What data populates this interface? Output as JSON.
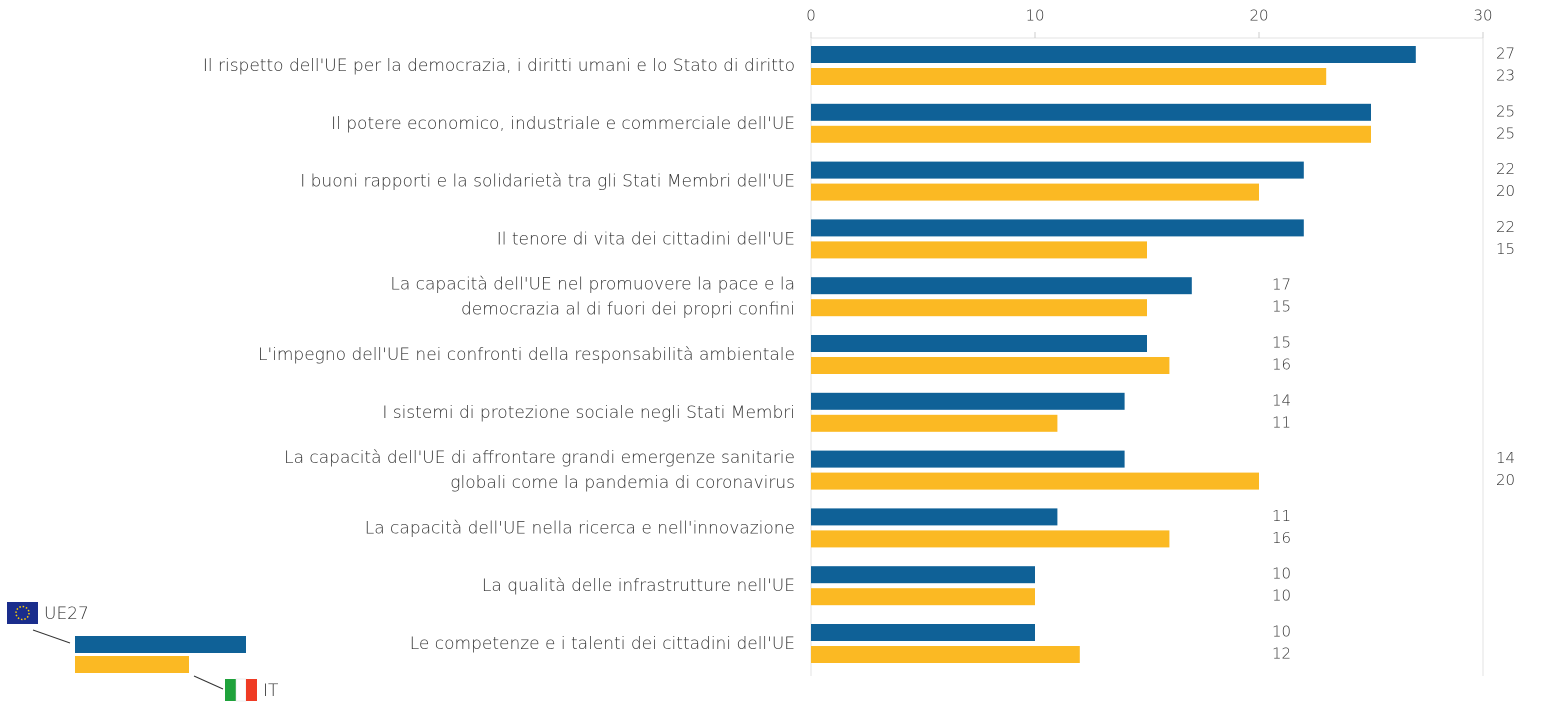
{
  "chart_data": {
    "type": "bar",
    "orientation": "horizontal",
    "categories": [
      "Il rispetto dell'UE per la democrazia, i diritti umani e lo Stato di diritto",
      "Il potere economico, industriale e commerciale dell'UE",
      "I buoni rapporti e la solidarietà tra gli Stati Membri dell'UE",
      "Il tenore di vita dei cittadini dell'UE",
      "La capacità dell'UE nel promuovere la pace e la\ndemocrazia al di fuori dei propri confini",
      "L'impegno dell'UE nei confronti della responsabilità ambientale",
      "I sistemi di protezione sociale negli Stati Membri",
      "La capacità dell'UE di affrontare grandi emergenze sanitarie\nglobali come la pandemia di coronavirus",
      "La capacità dell'UE nella ricerca e nell'innovazione",
      "La qualità delle infrastrutture nell'UE",
      "Le competenze e i talenti dei cittadini dell'UE"
    ],
    "series": [
      {
        "name": "UE27",
        "color": "#0f6197",
        "values": [
          27,
          25,
          22,
          22,
          17,
          15,
          14,
          14,
          11,
          10,
          10
        ]
      },
      {
        "name": "IT",
        "color": "#fbb923",
        "values": [
          23,
          25,
          20,
          15,
          15,
          16,
          11,
          20,
          16,
          10,
          12
        ]
      }
    ],
    "xlim": [
      0,
      30
    ],
    "xticks": [
      0,
      10,
      20,
      30
    ]
  }
}
